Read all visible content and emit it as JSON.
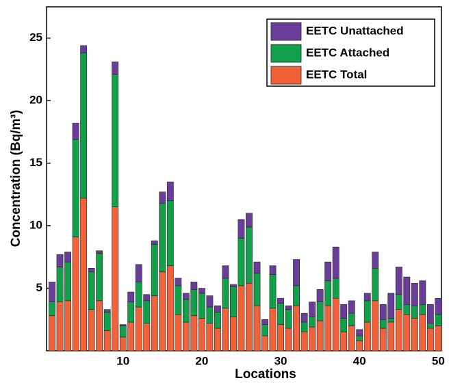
{
  "chart_data": {
    "type": "bar",
    "stacked": true,
    "x_label": "Locations",
    "y_label": "Concentration (Bq/m³)",
    "x": [
      1,
      2,
      3,
      4,
      5,
      6,
      7,
      8,
      9,
      10,
      11,
      12,
      13,
      14,
      15,
      16,
      17,
      18,
      19,
      20,
      21,
      22,
      23,
      24,
      25,
      26,
      27,
      28,
      29,
      30,
      31,
      32,
      33,
      34,
      35,
      36,
      37,
      38,
      39,
      40,
      41,
      42,
      43,
      44,
      45,
      46,
      47,
      48,
      49,
      50
    ],
    "xlim": [
      0.3,
      50.4
    ],
    "xticks": [
      10,
      20,
      30,
      40,
      50
    ],
    "ylim": [
      0,
      27.5
    ],
    "yticks": [
      5,
      10,
      15,
      20,
      25
    ],
    "legend": "upper right",
    "series": [
      {
        "name": "EETC Total",
        "color": "#f0623a",
        "values": [
          2.8,
          3.9,
          4.0,
          9.1,
          12.2,
          3.3,
          4.0,
          1.6,
          11.5,
          1.1,
          2.3,
          3.5,
          2.2,
          4.4,
          6.3,
          6.8,
          2.9,
          2.3,
          2.8,
          2.6,
          2.2,
          1.8,
          3.4,
          2.7,
          5.2,
          5.4,
          3.6,
          1.2,
          3.4,
          2.1,
          1.8,
          3.6,
          1.5,
          1.9,
          2.4,
          3.6,
          4.2,
          1.5,
          2.0,
          0.8,
          2.3,
          4.0,
          1.8,
          2.3,
          3.3,
          2.9,
          2.6,
          2.9,
          1.8,
          2.0
        ]
      },
      {
        "name": "EETC Attached",
        "color": "#12a04a",
        "values": [
          1.1,
          2.8,
          3.1,
          7.8,
          11.6,
          3.0,
          3.8,
          1.5,
          10.6,
          0.9,
          1.6,
          2.0,
          1.8,
          4.1,
          5.5,
          5.2,
          2.3,
          1.8,
          2.1,
          2.0,
          1.3,
          1.3,
          2.4,
          2.4,
          3.8,
          4.5,
          2.6,
          0.9,
          2.7,
          1.7,
          1.5,
          1.6,
          0.8,
          0.8,
          1.5,
          2.0,
          1.6,
          1.1,
          1.0,
          0.4,
          1.7,
          2.6,
          0.7,
          0.3,
          1.2,
          0.8,
          1.0,
          0.8,
          0.4,
          0.9
        ]
      },
      {
        "name": "EETC Unattached",
        "color": "#6a3d9a",
        "values": [
          1.6,
          1.0,
          0.8,
          1.3,
          0.6,
          0.3,
          0.2,
          0.2,
          1.0,
          0.1,
          0.8,
          1.4,
          0.5,
          0.3,
          0.9,
          1.5,
          0.6,
          0.5,
          0.6,
          0.4,
          0.9,
          0.5,
          1.0,
          0.2,
          1.5,
          1.1,
          0.9,
          0.4,
          0.7,
          0.4,
          0.3,
          2.1,
          0.7,
          1.2,
          1.0,
          1.5,
          2.5,
          1.1,
          1.0,
          0.5,
          0.6,
          1.3,
          1.2,
          2.0,
          2.2,
          2.2,
          1.8,
          1.9,
          1.5,
          1.3
        ]
      }
    ]
  }
}
